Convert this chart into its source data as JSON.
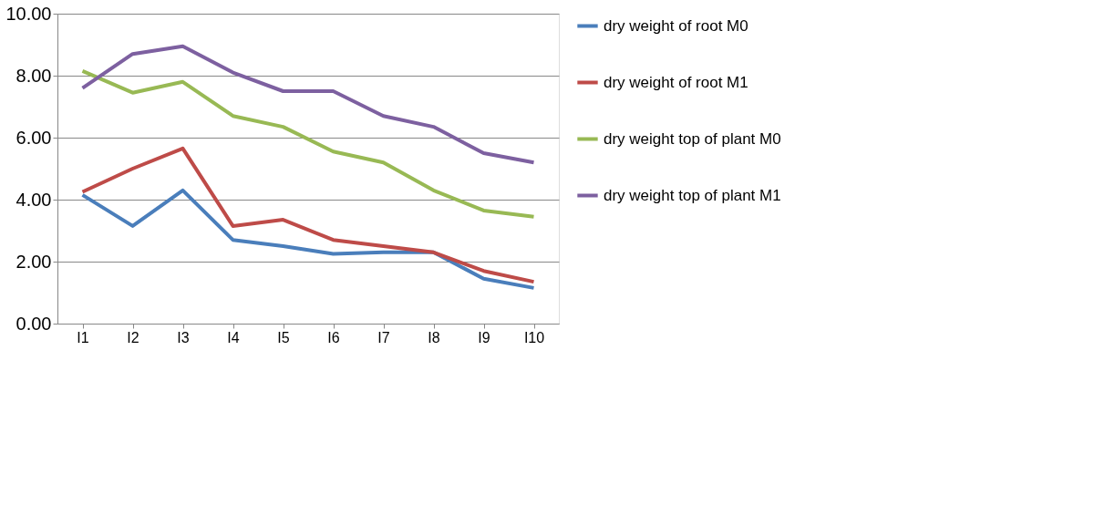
{
  "chart_data": {
    "type": "line",
    "categories": [
      "I1",
      "I2",
      "I3",
      "I4",
      "I5",
      "I6",
      "I7",
      "I8",
      "I9",
      "I10"
    ],
    "ylim": [
      0,
      10
    ],
    "yticks": [
      {
        "value": 0,
        "label": "0.00"
      },
      {
        "value": 2,
        "label": "2.00"
      },
      {
        "value": 4,
        "label": "4.00"
      },
      {
        "value": 6,
        "label": "6.00"
      },
      {
        "value": 8,
        "label": "8.00"
      },
      {
        "value": 10,
        "label": "10.00"
      }
    ],
    "grid": "y",
    "legend": "right",
    "marker": "none",
    "series": [
      {
        "name": "dry weight of root M0",
        "color": "#4a7ebb",
        "values": [
          4.15,
          3.15,
          4.3,
          2.7,
          2.5,
          2.25,
          2.3,
          2.3,
          1.45,
          1.15
        ]
      },
      {
        "name": "dry weight of root M1",
        "color": "#be4b48",
        "values": [
          4.25,
          5.0,
          5.65,
          3.15,
          3.35,
          2.7,
          2.5,
          2.3,
          1.7,
          1.35
        ]
      },
      {
        "name": "dry weight top of plant M0",
        "color": "#98b954",
        "values": [
          8.15,
          7.45,
          7.8,
          6.7,
          6.35,
          5.55,
          5.2,
          4.3,
          3.65,
          3.45
        ]
      },
      {
        "name": "dry weight top of plant M1",
        "color": "#7d60a0",
        "values": [
          7.6,
          8.7,
          8.95,
          8.1,
          7.5,
          7.5,
          6.7,
          6.35,
          5.5,
          5.2
        ]
      }
    ]
  }
}
